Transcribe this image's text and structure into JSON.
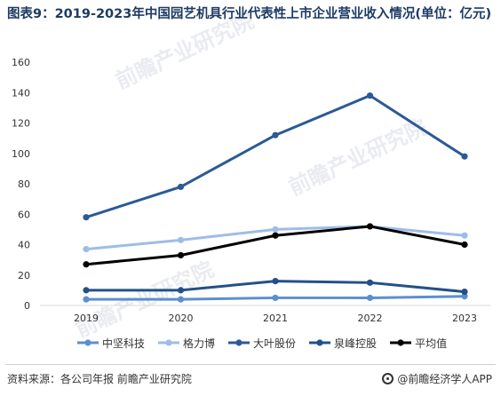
{
  "title": "图表9：2019-2023年中国园艺机具行业代表性上市企业营业收入情况(单位：亿元)",
  "source": "资料来源：各公司年报 前瞻产业研究院",
  "brand": "@前瞻经济学人APP",
  "watermark": "前瞻产业研究院",
  "chart_data": {
    "type": "line",
    "categories": [
      "2019",
      "2020",
      "2021",
      "2022",
      "2023"
    ],
    "ylim": [
      0,
      160
    ],
    "yticks": [
      "0",
      "20",
      "40",
      "60",
      "80",
      "100",
      "120",
      "140",
      "160"
    ],
    "grid": false,
    "legend": "bottom",
    "series": [
      {
        "name": "中坚科技",
        "color": "#5b8fd0",
        "values": [
          4,
          4,
          5,
          5,
          6
        ]
      },
      {
        "name": "格力博",
        "color": "#9dbde8",
        "values": [
          37,
          43,
          50,
          52,
          46
        ]
      },
      {
        "name": "大叶股份",
        "color": "#2b5a94",
        "values": [
          58,
          78,
          112,
          138,
          98
        ]
      },
      {
        "name": "泉峰控股",
        "color": "#23508a",
        "values": [
          10,
          10,
          16,
          15,
          9
        ]
      },
      {
        "name": "平均值",
        "color": "#000000",
        "values": [
          27,
          33,
          46,
          52,
          40
        ]
      }
    ]
  }
}
